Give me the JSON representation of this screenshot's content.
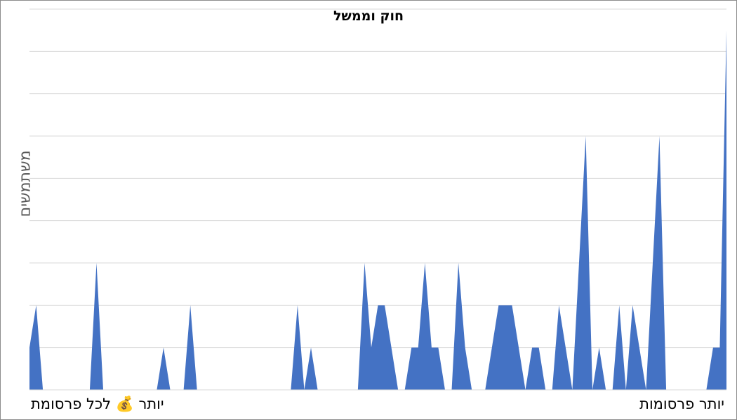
{
  "chart_data": {
    "type": "area",
    "title": "חוק וממשל",
    "ylabel": "משתמשים",
    "xlabel_left": "יותר 💰 לכל פרסומת",
    "xlabel_right": "יותר פרסומות",
    "ylim": [
      0,
      9
    ],
    "grid": true,
    "color": "#4472c4",
    "values": [
      1,
      2,
      0,
      0,
      0,
      0,
      0,
      0,
      0,
      0,
      3,
      0,
      0,
      0,
      0,
      0,
      0,
      0,
      0,
      0,
      1,
      0,
      0,
      0,
      2,
      0,
      0,
      0,
      0,
      0,
      0,
      0,
      0,
      0,
      0,
      0,
      0,
      0,
      0,
      0,
      2,
      0,
      1,
      0,
      0,
      0,
      0,
      0,
      0,
      0,
      3,
      1,
      2,
      2,
      1,
      0,
      0,
      1,
      1,
      3,
      1,
      1,
      0,
      0,
      3,
      1,
      0,
      0,
      0,
      1,
      2,
      2,
      2,
      1,
      0,
      1,
      1,
      0,
      0,
      2,
      1,
      0,
      3,
      6,
      0,
      1,
      0,
      0,
      2,
      0,
      2,
      1,
      0,
      3,
      6,
      0,
      0,
      0,
      0,
      0,
      0,
      0,
      1,
      1,
      8.5
    ]
  }
}
